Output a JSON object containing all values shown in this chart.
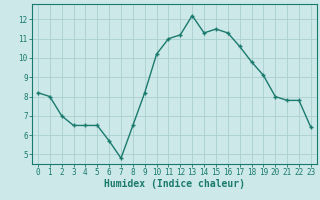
{
  "x": [
    0,
    1,
    2,
    3,
    4,
    5,
    6,
    7,
    8,
    9,
    10,
    11,
    12,
    13,
    14,
    15,
    16,
    17,
    18,
    19,
    20,
    21,
    22,
    23
  ],
  "y": [
    8.2,
    8.0,
    7.0,
    6.5,
    6.5,
    6.5,
    5.7,
    4.8,
    6.5,
    8.2,
    10.2,
    11.0,
    11.2,
    12.2,
    11.3,
    11.5,
    11.3,
    10.6,
    9.8,
    9.1,
    8.0,
    7.8,
    7.8,
    6.4
  ],
  "line_color": "#1a7a6e",
  "bg_color": "#cce8e8",
  "grid_color": "#aacfcf",
  "xlabel": "Humidex (Indice chaleur)",
  "ylim": [
    4.5,
    12.8
  ],
  "xlim": [
    -0.5,
    23.5
  ],
  "yticks": [
    5,
    6,
    7,
    8,
    9,
    10,
    11,
    12
  ],
  "xticks": [
    0,
    1,
    2,
    3,
    4,
    5,
    6,
    7,
    8,
    9,
    10,
    11,
    12,
    13,
    14,
    15,
    16,
    17,
    18,
    19,
    20,
    21,
    22,
    23
  ],
  "marker": "+",
  "markersize": 3.5,
  "linewidth": 1.0,
  "tick_fontsize": 5.5,
  "xlabel_fontsize": 7.0
}
